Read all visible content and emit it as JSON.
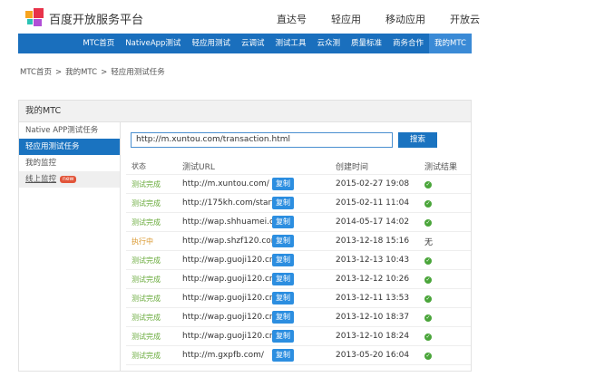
{
  "header": {
    "brand": "百度开放服务平台",
    "top_links": [
      "直达号",
      "轻应用",
      "移动应用",
      "开放云"
    ]
  },
  "nav": {
    "items": [
      "MTC首页",
      "NativeApp测试",
      "轻应用测试",
      "云调试",
      "测试工具",
      "云众测",
      "质量标准",
      "商务合作",
      "我的MTC"
    ],
    "active": "我的MTC"
  },
  "breadcrumb": [
    "MTC首页",
    "我的MTC",
    "轻应用测试任务"
  ],
  "panel": {
    "title": "我的MTC"
  },
  "sidebar": {
    "items": [
      {
        "label": "Native APP测试任务"
      },
      {
        "label": "轻应用测试任务",
        "active": true
      },
      {
        "label": "我的监控"
      },
      {
        "label": "线上监控",
        "badge": "new"
      }
    ]
  },
  "search": {
    "value": "http://m.xuntou.com/transaction.html",
    "button": "搜索"
  },
  "table": {
    "headers": [
      "状态",
      "测试URL",
      "创建时间",
      "测试结果"
    ],
    "copy_label": "复制",
    "rows": [
      {
        "status": "测试完成",
        "url": "http://m.xuntou.com/",
        "time": "2015-02-27 19:08",
        "result": "ok"
      },
      {
        "status": "测试完成",
        "url": "http://175kh.com/start/in...",
        "time": "2015-02-11 11:04",
        "result": "ok"
      },
      {
        "status": "测试完成",
        "url": "http://wap.shhuamei.cn/sp...",
        "time": "2014-05-17 14:02",
        "result": "ok"
      },
      {
        "status": "执行中",
        "url": "http://wap.shzf120.com/ww",
        "time": "2013-12-18 15:16",
        "result": "无"
      },
      {
        "status": "测试完成",
        "url": "http://wap.guoji120.cn/zt...",
        "time": "2013-12-13 10:43",
        "result": "ok"
      },
      {
        "status": "测试完成",
        "url": "http://wap.guoji120.cn/zt...",
        "time": "2013-12-12 10:26",
        "result": "ok"
      },
      {
        "status": "测试完成",
        "url": "http://wap.guoji120.cn/zt...",
        "time": "2013-12-11 13:53",
        "result": "ok"
      },
      {
        "status": "测试完成",
        "url": "http://wap.guoji120.cn/zt...",
        "time": "2013-12-10 18:37",
        "result": "ok"
      },
      {
        "status": "测试完成",
        "url": "http://wap.guoji120.cn/zt...",
        "time": "2013-12-10 18:24",
        "result": "ok"
      },
      {
        "status": "测试完成",
        "url": "http://m.gxpfb.com/",
        "time": "2013-05-20 16:04",
        "result": "ok"
      }
    ]
  },
  "colors": {
    "nav": "#1a6fbd",
    "done": "#6aab3c",
    "running": "#d9962b",
    "button": "#2c8ee0"
  }
}
